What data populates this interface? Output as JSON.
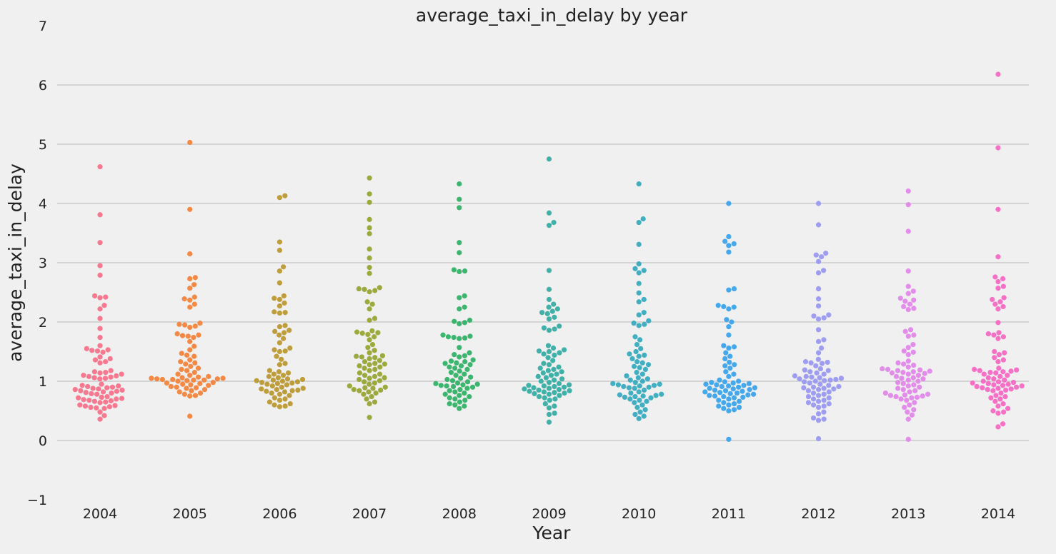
{
  "chart_data": {
    "type": "scatter",
    "subtype": "swarm",
    "title": "average_taxi_in_delay by year",
    "xlabel": "Year",
    "ylabel": "average_taxi_in_delay",
    "ylim": [
      -1,
      7
    ],
    "yticks": [
      -1,
      0,
      1,
      2,
      3,
      4,
      5,
      6,
      7
    ],
    "grid": true,
    "legend": "none",
    "background": "#f0f0f0",
    "categories": [
      "2004",
      "2005",
      "2006",
      "2007",
      "2008",
      "2009",
      "2010",
      "2011",
      "2012",
      "2013",
      "2014"
    ],
    "series": [
      {
        "category": "2004",
        "color": "#f77189",
        "values": [
          4.62,
          3.81,
          3.34,
          2.95,
          2.79,
          2.44,
          2.42,
          2.41,
          2.28,
          2.22,
          2.06,
          1.89,
          1.74,
          1.6,
          1.55,
          1.53,
          1.52,
          1.51,
          1.49,
          1.41,
          1.38,
          1.36,
          1.33,
          1.31,
          1.18,
          1.16,
          1.15,
          1.14,
          1.12,
          1.1,
          1.09,
          1.08,
          1.07,
          1.06,
          1.05,
          1.04,
          0.95,
          0.93,
          0.92,
          0.91,
          0.9,
          0.89,
          0.88,
          0.87,
          0.86,
          0.85,
          0.84,
          0.83,
          0.82,
          0.81,
          0.8,
          0.79,
          0.78,
          0.74,
          0.73,
          0.72,
          0.71,
          0.7,
          0.69,
          0.68,
          0.67,
          0.66,
          0.65,
          0.64,
          0.6,
          0.59,
          0.58,
          0.57,
          0.56,
          0.55,
          0.54,
          0.48,
          0.42,
          0.36
        ]
      },
      {
        "category": "2005",
        "color": "#f2833a",
        "values": [
          5.03,
          3.9,
          3.15,
          2.75,
          2.73,
          2.63,
          2.57,
          2.42,
          2.39,
          2.37,
          2.3,
          2.25,
          1.98,
          1.96,
          1.95,
          1.93,
          1.91,
          1.8,
          1.78,
          1.77,
          1.76,
          1.74,
          1.67,
          1.59,
          1.53,
          1.47,
          1.44,
          1.42,
          1.36,
          1.33,
          1.31,
          1.29,
          1.25,
          1.22,
          1.2,
          1.18,
          1.15,
          1.12,
          1.1,
          1.08,
          1.07,
          1.06,
          1.05,
          1.05,
          1.04,
          1.04,
          1.03,
          1.03,
          1.02,
          1.02,
          1.01,
          1.0,
          0.98,
          0.97,
          0.96,
          0.95,
          0.94,
          0.93,
          0.91,
          0.9,
          0.89,
          0.88,
          0.86,
          0.84,
          0.82,
          0.8,
          0.78,
          0.76,
          0.75,
          0.41
        ]
      },
      {
        "category": "2006",
        "color": "#bb9832",
        "values": [
          4.13,
          4.1,
          3.35,
          3.21,
          2.93,
          2.86,
          2.66,
          2.44,
          2.4,
          2.38,
          2.32,
          2.27,
          2.17,
          2.16,
          2.15,
          1.94,
          1.92,
          1.86,
          1.84,
          1.82,
          1.78,
          1.72,
          1.65,
          1.56,
          1.53,
          1.51,
          1.5,
          1.42,
          1.37,
          1.3,
          1.28,
          1.18,
          1.16,
          1.14,
          1.12,
          1.1,
          1.08,
          1.06,
          1.04,
          1.03,
          1.02,
          1.01,
          1.0,
          0.99,
          0.98,
          0.97,
          0.96,
          0.95,
          0.94,
          0.92,
          0.9,
          0.88,
          0.87,
          0.86,
          0.85,
          0.84,
          0.83,
          0.82,
          0.8,
          0.78,
          0.76,
          0.72,
          0.7,
          0.68,
          0.65,
          0.62,
          0.6,
          0.58,
          0.57
        ]
      },
      {
        "category": "2007",
        "color": "#97a431",
        "values": [
          4.43,
          4.16,
          4.02,
          3.73,
          3.59,
          3.49,
          3.23,
          3.08,
          2.92,
          2.82,
          2.58,
          2.56,
          2.55,
          2.53,
          2.51,
          2.34,
          2.3,
          2.22,
          2.06,
          2.03,
          1.85,
          1.83,
          1.82,
          1.81,
          1.79,
          1.75,
          1.7,
          1.62,
          1.57,
          1.52,
          1.48,
          1.43,
          1.42,
          1.41,
          1.4,
          1.38,
          1.35,
          1.33,
          1.3,
          1.29,
          1.28,
          1.26,
          1.24,
          1.22,
          1.2,
          1.18,
          1.14,
          1.12,
          1.1,
          1.08,
          1.06,
          1.05,
          1.03,
          1.01,
          0.99,
          0.97,
          0.95,
          0.92,
          0.9,
          0.89,
          0.88,
          0.86,
          0.85,
          0.84,
          0.82,
          0.8,
          0.78,
          0.74,
          0.7,
          0.65,
          0.62,
          0.39
        ]
      },
      {
        "category": "2008",
        "color": "#32b166",
        "values": [
          4.33,
          4.07,
          3.93,
          3.34,
          3.17,
          2.88,
          2.86,
          2.85,
          2.44,
          2.41,
          2.25,
          2.22,
          2.03,
          2.01,
          1.99,
          1.97,
          1.78,
          1.76,
          1.75,
          1.74,
          1.73,
          1.72,
          1.57,
          1.48,
          1.45,
          1.43,
          1.41,
          1.36,
          1.34,
          1.33,
          1.31,
          1.3,
          1.28,
          1.26,
          1.24,
          1.22,
          1.2,
          1.17,
          1.15,
          1.12,
          1.1,
          1.07,
          1.05,
          1.03,
          1.01,
          0.99,
          0.97,
          0.96,
          0.95,
          0.94,
          0.93,
          0.92,
          0.91,
          0.9,
          0.88,
          0.86,
          0.84,
          0.82,
          0.8,
          0.78,
          0.76,
          0.74,
          0.72,
          0.7,
          0.68,
          0.65,
          0.62,
          0.6,
          0.58,
          0.54
        ]
      },
      {
        "category": "2009",
        "color": "#36ada4",
        "values": [
          4.75,
          3.84,
          3.68,
          3.63,
          2.87,
          2.55,
          2.38,
          2.3,
          2.25,
          2.22,
          2.18,
          2.16,
          2.14,
          2.08,
          2.05,
          1.93,
          1.9,
          1.88,
          1.86,
          1.6,
          1.56,
          1.53,
          1.51,
          1.5,
          1.48,
          1.46,
          1.44,
          1.4,
          1.35,
          1.3,
          1.28,
          1.24,
          1.22,
          1.2,
          1.18,
          1.16,
          1.14,
          1.12,
          1.1,
          1.08,
          1.06,
          1.04,
          1.02,
          1.0,
          0.98,
          0.96,
          0.94,
          0.93,
          0.92,
          0.91,
          0.9,
          0.89,
          0.88,
          0.87,
          0.86,
          0.85,
          0.84,
          0.83,
          0.82,
          0.81,
          0.8,
          0.79,
          0.78,
          0.76,
          0.74,
          0.72,
          0.7,
          0.68,
          0.62,
          0.58,
          0.55,
          0.46,
          0.44,
          0.31
        ]
      },
      {
        "category": "2010",
        "color": "#38aabe",
        "values": [
          4.33,
          3.74,
          3.68,
          3.31,
          2.98,
          2.9,
          2.87,
          2.83,
          2.65,
          2.49,
          2.38,
          2.34,
          2.16,
          2.12,
          2.02,
          1.98,
          1.96,
          1.94,
          1.75,
          1.7,
          1.62,
          1.55,
          1.5,
          1.46,
          1.44,
          1.42,
          1.38,
          1.33,
          1.31,
          1.28,
          1.25,
          1.23,
          1.2,
          1.15,
          1.12,
          1.09,
          1.06,
          1.04,
          1.02,
          1.0,
          0.98,
          0.96,
          0.95,
          0.94,
          0.93,
          0.92,
          0.91,
          0.9,
          0.89,
          0.88,
          0.85,
          0.82,
          0.8,
          0.78,
          0.77,
          0.76,
          0.75,
          0.74,
          0.73,
          0.72,
          0.7,
          0.68,
          0.66,
          0.64,
          0.6,
          0.56,
          0.52,
          0.48,
          0.44,
          0.41,
          0.37
        ]
      },
      {
        "category": "2011",
        "color": "#3ba3ec",
        "values": [
          4.0,
          3.44,
          3.36,
          3.32,
          3.29,
          3.18,
          2.56,
          2.54,
          2.28,
          2.26,
          2.25,
          2.22,
          2.04,
          2.0,
          1.92,
          1.78,
          1.6,
          1.58,
          1.56,
          1.48,
          1.42,
          1.38,
          1.32,
          1.28,
          1.26,
          1.22,
          1.16,
          1.12,
          1.08,
          1.02,
          1.0,
          0.99,
          0.98,
          0.97,
          0.96,
          0.95,
          0.94,
          0.93,
          0.92,
          0.91,
          0.9,
          0.89,
          0.88,
          0.87,
          0.86,
          0.85,
          0.84,
          0.83,
          0.82,
          0.81,
          0.8,
          0.79,
          0.78,
          0.77,
          0.76,
          0.75,
          0.74,
          0.73,
          0.72,
          0.7,
          0.68,
          0.66,
          0.64,
          0.62,
          0.6,
          0.58,
          0.56,
          0.54,
          0.52,
          0.5,
          0.02
        ]
      },
      {
        "category": "2012",
        "color": "#9998f0",
        "values": [
          4.0,
          3.64,
          3.16,
          3.13,
          3.1,
          3.02,
          2.87,
          2.83,
          2.56,
          2.39,
          2.27,
          2.12,
          2.1,
          2.07,
          2.05,
          1.87,
          1.7,
          1.67,
          1.56,
          1.48,
          1.37,
          1.33,
          1.32,
          1.31,
          1.3,
          1.26,
          1.21,
          1.19,
          1.18,
          1.16,
          1.14,
          1.12,
          1.09,
          1.08,
          1.07,
          1.06,
          1.05,
          1.04,
          1.03,
          1.02,
          1.01,
          1.0,
          0.99,
          0.97,
          0.95,
          0.93,
          0.91,
          0.9,
          0.89,
          0.88,
          0.87,
          0.86,
          0.84,
          0.82,
          0.8,
          0.78,
          0.76,
          0.74,
          0.72,
          0.7,
          0.68,
          0.66,
          0.64,
          0.62,
          0.6,
          0.58,
          0.56,
          0.48,
          0.45,
          0.38,
          0.36,
          0.34,
          0.03
        ]
      },
      {
        "category": "2013",
        "color": "#e087e8",
        "values": [
          4.21,
          3.98,
          3.53,
          2.86,
          2.6,
          2.52,
          2.48,
          2.4,
          2.37,
          2.35,
          2.3,
          2.26,
          2.23,
          2.21,
          1.87,
          1.84,
          1.78,
          1.76,
          1.62,
          1.57,
          1.51,
          1.49,
          1.45,
          1.34,
          1.31,
          1.29,
          1.27,
          1.24,
          1.21,
          1.2,
          1.19,
          1.18,
          1.17,
          1.16,
          1.15,
          1.14,
          1.13,
          1.12,
          1.1,
          1.08,
          1.06,
          1.05,
          1.04,
          1.02,
          1.0,
          0.98,
          0.96,
          0.94,
          0.92,
          0.9,
          0.88,
          0.86,
          0.84,
          0.82,
          0.8,
          0.78,
          0.77,
          0.76,
          0.75,
          0.74,
          0.73,
          0.72,
          0.7,
          0.68,
          0.64,
          0.6,
          0.56,
          0.52,
          0.48,
          0.43,
          0.36,
          0.02
        ]
      },
      {
        "category": "2014",
        "color": "#f668c2",
        "values": [
          6.18,
          4.94,
          3.9,
          3.1,
          2.76,
          2.73,
          2.68,
          2.6,
          2.57,
          2.41,
          2.38,
          2.34,
          2.3,
          2.26,
          2.22,
          1.99,
          1.82,
          1.8,
          1.78,
          1.75,
          1.72,
          1.5,
          1.48,
          1.45,
          1.4,
          1.36,
          1.33,
          1.22,
          1.2,
          1.19,
          1.18,
          1.17,
          1.16,
          1.15,
          1.14,
          1.12,
          1.1,
          1.08,
          1.06,
          1.04,
          1.02,
          1.0,
          0.99,
          0.98,
          0.97,
          0.96,
          0.95,
          0.94,
          0.93,
          0.92,
          0.91,
          0.9,
          0.89,
          0.88,
          0.87,
          0.86,
          0.85,
          0.84,
          0.8,
          0.76,
          0.74,
          0.72,
          0.7,
          0.66,
          0.62,
          0.58,
          0.54,
          0.5,
          0.48,
          0.46,
          0.28,
          0.23
        ]
      }
    ]
  }
}
